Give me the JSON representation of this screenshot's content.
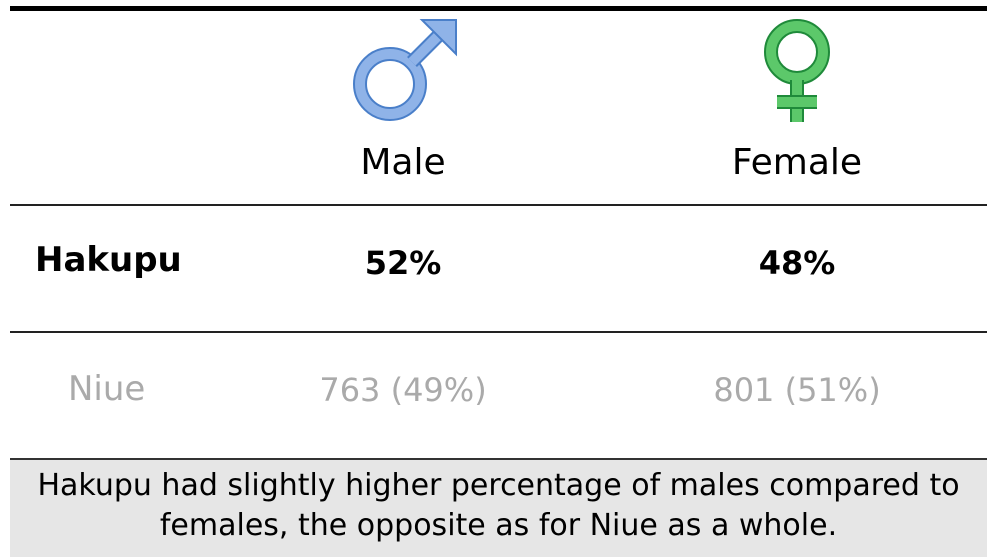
{
  "table": {
    "columns": [
      "Male",
      "Female"
    ],
    "rows": [
      {
        "label": "Hakupu",
        "cells": [
          "52%",
          "48%"
        ]
      },
      {
        "label": "Niue",
        "cells": [
          "763 (49%)",
          "801 (51%)"
        ]
      }
    ]
  },
  "note": "Hakupu had slightly higher percentage of males compared to females, the opposite as for Niue as a whole."
}
